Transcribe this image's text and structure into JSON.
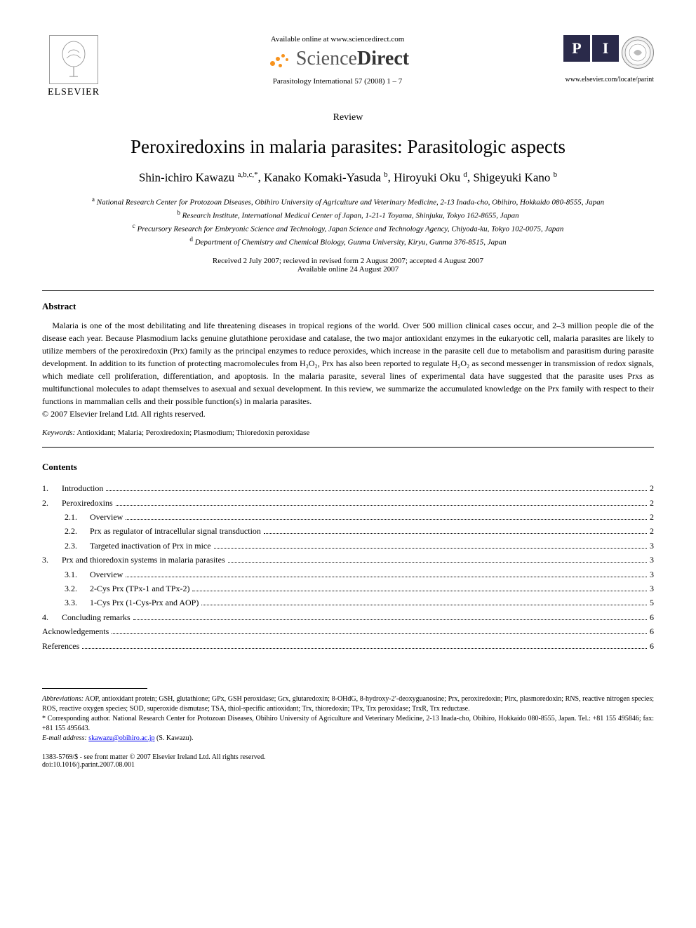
{
  "header": {
    "publisher": "ELSEVIER",
    "available_online": "Available online at www.sciencedirect.com",
    "sd_brand_1": "Science",
    "sd_brand_2": "Direct",
    "journal_ref": "Parasitology International 57 (2008) 1 – 7",
    "journal_url": "www.elsevier.com/locate/parint"
  },
  "article": {
    "type": "Review",
    "title": "Peroxiredoxins in malaria parasites: Parasitologic aspects",
    "authors_html": "Shin-ichiro Kawazu <sup>a,b,c,</sup>*, Kanako Komaki-Yasuda <sup>b</sup>, Hiroyuki Oku <sup>d</sup>, Shigeyuki Kano <sup>b</sup>",
    "authors": [
      {
        "name": "Shin-ichiro Kawazu",
        "marks": "a,b,c,*"
      },
      {
        "name": "Kanako Komaki-Yasuda",
        "marks": "b"
      },
      {
        "name": "Hiroyuki Oku",
        "marks": "d"
      },
      {
        "name": "Shigeyuki Kano",
        "marks": "b"
      }
    ],
    "affiliations": [
      {
        "mark": "a",
        "text": "National Research Center for Protozoan Diseases, Obihiro University of Agriculture and Veterinary Medicine, 2-13 Inada-cho, Obihiro, Hokkaido 080-8555, Japan"
      },
      {
        "mark": "b",
        "text": "Research Institute, International Medical Center of Japan, 1-21-1 Toyama, Shinjuku, Tokyo 162-8655, Japan"
      },
      {
        "mark": "c",
        "text": "Precursory Research for Embryonic Science and Technology, Japan Science and Technology Agency, Chiyoda-ku, Tokyo 102-0075, Japan"
      },
      {
        "mark": "d",
        "text": "Department of Chemistry and Chemical Biology, Gunma University, Kiryu, Gunma 376-8515, Japan"
      }
    ],
    "dates": "Received 2 July 2007; recieved in revised form 2 August 2007; accepted 4 August 2007",
    "available": "Available online 24 August 2007"
  },
  "abstract": {
    "heading": "Abstract",
    "text": "Malaria is one of the most debilitating and life threatening diseases in tropical regions of the world. Over 500 million clinical cases occur, and 2–3 million people die of the disease each year. Because Plasmodium lacks genuine glutathione peroxidase and catalase, the two major antioxidant enzymes in the eukaryotic cell, malaria parasites are likely to utilize members of the peroxiredoxin (Prx) family as the principal enzymes to reduce peroxides, which increase in the parasite cell due to metabolism and parasitism during parasite development. In addition to its function of protecting macromolecules from H₂O₂, Prx has also been reported to regulate H₂O₂ as second messenger in transmission of redox signals, which mediate cell proliferation, differentiation, and apoptosis. In the malaria parasite, several lines of experimental data have suggested that the parasite uses Prxs as multifunctional molecules to adapt themselves to asexual and sexual development. In this review, we summarize the accumulated knowledge on the Prx family with respect to their functions in mammalian cells and their possible function(s) in malaria parasites.",
    "copyright": "© 2007 Elsevier Ireland Ltd. All rights reserved."
  },
  "keywords": {
    "label": "Keywords:",
    "text": " Antioxidant; Malaria; Peroxiredoxin; Plasmodium; Thioredoxin peroxidase"
  },
  "contents": {
    "heading": "Contents",
    "items": [
      {
        "num": "1.",
        "label": "Introduction",
        "page": "2",
        "level": 0
      },
      {
        "num": "2.",
        "label": "Peroxiredoxins",
        "page": "2",
        "level": 0
      },
      {
        "num": "2.1.",
        "label": "Overview",
        "page": "2",
        "level": 1
      },
      {
        "num": "2.2.",
        "label": "Prx as regulator of intracellular signal transduction",
        "page": "2",
        "level": 1
      },
      {
        "num": "2.3.",
        "label": "Targeted inactivation of Prx in mice",
        "page": "3",
        "level": 1
      },
      {
        "num": "3.",
        "label": "Prx and thioredoxin systems in malaria parasites",
        "page": "3",
        "level": 0
      },
      {
        "num": "3.1.",
        "label": "Overview",
        "page": "3",
        "level": 1
      },
      {
        "num": "3.2.",
        "label": "2-Cys Prx (TPx-1 and TPx-2)",
        "page": "3",
        "level": 1
      },
      {
        "num": "3.3.",
        "label": "1-Cys Prx (1-Cys-Prx and AOP)",
        "page": "5",
        "level": 1
      },
      {
        "num": "4.",
        "label": "Concluding remarks",
        "page": "6",
        "level": 0
      },
      {
        "num": "",
        "label": "Acknowledgements",
        "page": "6",
        "level": -1
      },
      {
        "num": "",
        "label": "References",
        "page": "6",
        "level": -1
      }
    ]
  },
  "footnotes": {
    "abbrev_label": "Abbreviations:",
    "abbrev_text": " AOP, antioxidant protein; GSH, glutathione; GPx, GSH peroxidase; Grx, glutaredoxin; 8-OHdG, 8-hydroxy-2′-deoxyguanosine; Prx, peroxiredoxin; Plrx, plasmoredoxin; RNS, reactive nitrogen species; ROS, reactive oxygen species; SOD, superoxide dismutase; TSA, thiol-specific antioxidant; Trx, thioredoxin; TPx, Trx peroxidase; TrxR, Trx reductase.",
    "corr_label": "* Corresponding author.",
    "corr_text": " National Research Center for Protozoan Diseases, Obihiro University of Agriculture and Veterinary Medicine, 2-13 Inada-cho, Obihiro, Hokkaido 080-8555, Japan. Tel.: +81 155 495846; fax: +81 155 495643.",
    "email_label": "E-mail address:",
    "email": "skawazu@obihiro.ac.jp",
    "email_suffix": " (S. Kawazu)."
  },
  "bottom": {
    "issn": "1383-5769/$ - see front matter © 2007 Elsevier Ireland Ltd. All rights reserved.",
    "doi": "doi:10.1016/j.parint.2007.08.001"
  }
}
